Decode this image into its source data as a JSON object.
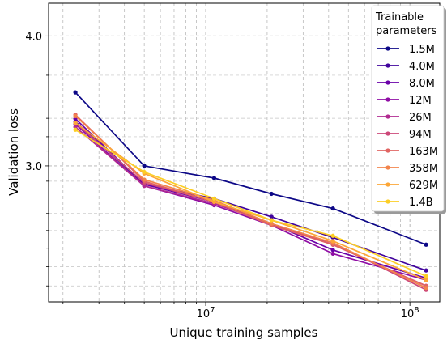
{
  "chart_data": {
    "type": "line",
    "xlabel": "Unique training samples",
    "ylabel": "Validation loss",
    "x_scale": "log",
    "y_scale": "log",
    "xlim": [
      1700000,
      140000000
    ],
    "ylim": [
      2.22,
      4.3
    ],
    "grid": true,
    "x_ticks": [
      {
        "value": 10000000,
        "base": "10",
        "exp": "7"
      },
      {
        "value": 100000000,
        "base": "10",
        "exp": "8"
      }
    ],
    "y_ticks": [
      {
        "value": 3.0,
        "label": "3.0"
      },
      {
        "value": 4.0,
        "label": "4.0"
      }
    ],
    "x": [
      2300000,
      5000000,
      11000000,
      21000000,
      42000000,
      120000000
    ],
    "legend": {
      "title_line1": "Trainable",
      "title_line2": "parameters",
      "placement": "top-right"
    },
    "series": [
      {
        "name": "1.5M",
        "color": "#0d0887",
        "values": [
          3.53,
          3.0,
          2.92,
          2.82,
          2.73,
          2.52
        ]
      },
      {
        "name": "4.0M",
        "color": "#41049d",
        "values": [
          3.31,
          2.88,
          2.79,
          2.68,
          2.56,
          2.38
        ]
      },
      {
        "name": "8.0M",
        "color": "#6a00a8",
        "values": [
          3.33,
          2.88,
          2.77,
          2.64,
          2.49,
          2.34
        ]
      },
      {
        "name": "12M",
        "color": "#8f0da4",
        "values": [
          3.29,
          2.87,
          2.75,
          2.63,
          2.47,
          2.33
        ]
      },
      {
        "name": "26M",
        "color": "#b12a90",
        "values": [
          3.27,
          2.87,
          2.76,
          2.64,
          2.52,
          2.3
        ]
      },
      {
        "name": "94M",
        "color": "#cc4778",
        "values": [
          3.3,
          2.89,
          2.77,
          2.63,
          2.53,
          2.28
        ]
      },
      {
        "name": "163M",
        "color": "#e16462",
        "values": [
          3.36,
          2.9,
          2.77,
          2.63,
          2.52,
          2.3
        ]
      },
      {
        "name": "358M",
        "color": "#f2844b",
        "values": [
          3.35,
          2.91,
          2.78,
          2.64,
          2.53,
          2.29
        ]
      },
      {
        "name": "629M",
        "color": "#fca636",
        "values": [
          3.3,
          2.95,
          2.77,
          2.66,
          2.54,
          2.33
        ]
      },
      {
        "name": "1.4B",
        "color": "#fcce25",
        "values": [
          3.25,
          2.96,
          2.79,
          2.66,
          2.57,
          2.35
        ]
      }
    ]
  }
}
